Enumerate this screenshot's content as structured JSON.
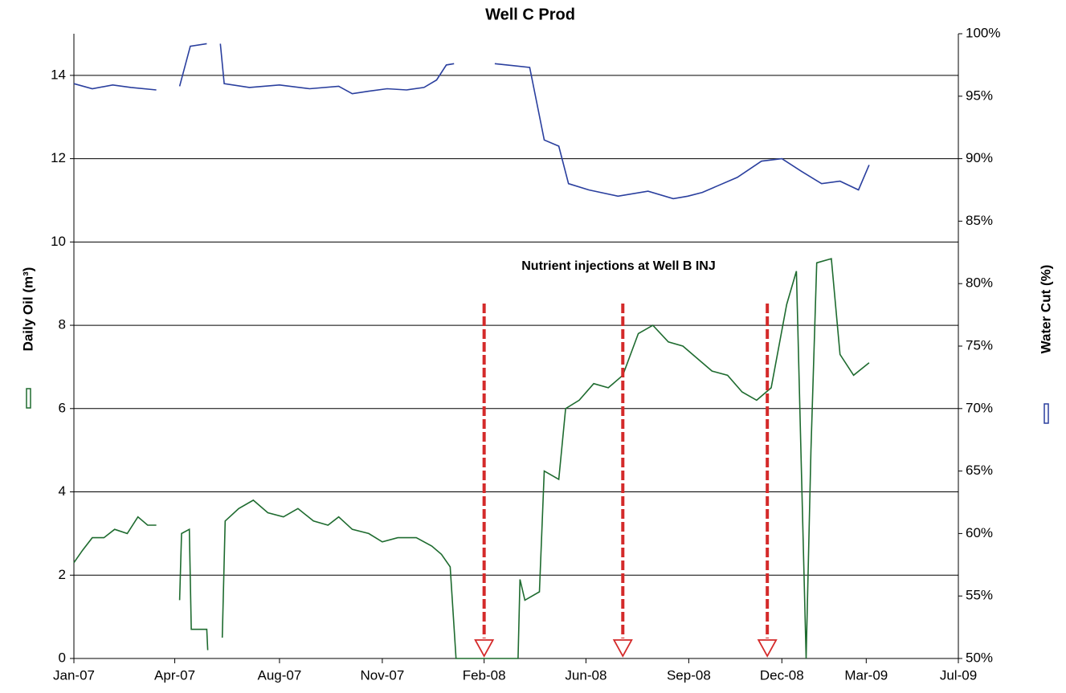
{
  "chart_data": {
    "type": "line",
    "title": "Well C Prod",
    "y_label": "Daily Oil (m³)",
    "y2_label": "Water Cut (%)",
    "annotation": "Nutrient injections at Well B INJ",
    "annotation_color": "#d42a2a",
    "injections": [
      "2008-02-28",
      "2008-07-20",
      "2008-12-16"
    ],
    "grid": true,
    "xlim": [
      "2007-01-01",
      "2009-07-01"
    ],
    "xticks": [
      {
        "value": "2007-01-01",
        "label": "Jan-07"
      },
      {
        "value": "2007-04-15",
        "label": "Apr-07"
      },
      {
        "value": "2007-08-01",
        "label": "Aug-07"
      },
      {
        "value": "2007-11-15",
        "label": "Nov-07"
      },
      {
        "value": "2008-02-28",
        "label": "Feb-08"
      },
      {
        "value": "2008-06-12",
        "label": "Jun-08"
      },
      {
        "value": "2008-09-26",
        "label": "Sep-08"
      },
      {
        "value": "2008-12-31",
        "label": "Dec-08"
      },
      {
        "value": "2009-03-28",
        "label": "Mar-09"
      },
      {
        "value": "2009-07-01",
        "label": "Jul-09"
      }
    ],
    "ylim": [
      0,
      15
    ],
    "yticks": [
      0,
      2,
      4,
      6,
      8,
      10,
      12,
      14
    ],
    "y2lim": [
      50,
      100
    ],
    "y2ticks": [
      {
        "value": 50,
        "label": "50%"
      },
      {
        "value": 55,
        "label": "55%"
      },
      {
        "value": 60,
        "label": "60%"
      },
      {
        "value": 65,
        "label": "65%"
      },
      {
        "value": 70,
        "label": "70%"
      },
      {
        "value": 75,
        "label": "75%"
      },
      {
        "value": 80,
        "label": "80%"
      },
      {
        "value": 85,
        "label": "85%"
      },
      {
        "value": 90,
        "label": "90%"
      },
      {
        "value": 95,
        "label": "95%"
      },
      {
        "value": 100,
        "label": "100%"
      }
    ],
    "series": [
      {
        "color": "#1e6b2f",
        "axis": "y",
        "x": [
          "2007-01-01",
          "2007-01-10",
          "2007-01-20",
          "2007-02-01",
          "2007-02-12",
          "2007-02-25",
          "2007-03-08",
          "2007-03-18",
          "2007-03-27",
          "2007-04-10",
          "2007-04-20",
          "2007-04-22",
          "2007-04-30",
          "2007-05-02",
          "2007-05-18",
          "2007-05-19",
          "2007-05-26",
          "2007-06-03",
          "2007-06-06",
          "2007-06-20",
          "2007-07-05",
          "2007-07-20",
          "2007-08-05",
          "2007-08-20",
          "2007-09-05",
          "2007-09-20",
          "2007-10-01",
          "2007-10-15",
          "2007-11-01",
          "2007-11-15",
          "2007-12-01",
          "2007-12-20",
          "2008-01-05",
          "2008-01-15",
          "2008-01-24",
          "2008-01-30",
          "2008-04-03",
          "2008-04-05",
          "2008-04-10",
          "2008-04-25",
          "2008-04-30",
          "2008-05-15",
          "2008-05-22",
          "2008-06-05",
          "2008-06-20",
          "2008-07-05",
          "2008-07-20",
          "2008-08-05",
          "2008-08-20",
          "2008-09-05",
          "2008-09-20",
          "2008-10-05",
          "2008-10-20",
          "2008-11-05",
          "2008-11-20",
          "2008-12-05",
          "2008-12-20",
          "2009-01-05",
          "2009-01-15",
          "2009-01-25",
          "2009-01-30",
          "2009-02-05",
          "2009-02-20",
          "2009-03-01",
          "2009-03-15",
          "2009-03-31"
        ],
        "values": [
          2.3,
          2.6,
          2.9,
          2.9,
          3.1,
          3.0,
          3.4,
          3.2,
          3.2,
          null,
          1.4,
          3.0,
          3.1,
          0.7,
          0.7,
          0.2,
          null,
          0.5,
          3.3,
          3.6,
          3.8,
          3.5,
          3.4,
          3.6,
          3.3,
          3.2,
          3.4,
          3.1,
          3.0,
          2.8,
          2.9,
          2.9,
          2.7,
          2.5,
          2.2,
          0,
          0,
          1.9,
          1.4,
          1.6,
          4.5,
          4.3,
          6.0,
          6.2,
          6.6,
          6.5,
          6.8,
          7.8,
          8.0,
          7.6,
          7.5,
          7.2,
          6.9,
          6.8,
          6.4,
          6.2,
          6.5,
          8.5,
          9.3,
          0,
          5.0,
          9.5,
          9.6,
          7.3,
          6.8,
          7.1
        ]
      },
      {
        "color": "#2a3f9e",
        "axis": "y2",
        "x": [
          "2007-01-01",
          "2007-01-20",
          "2007-02-10",
          "2007-03-01",
          "2007-03-27",
          "2007-04-10",
          "2007-04-20",
          "2007-05-01",
          "2007-05-18",
          "2007-05-26",
          "2007-06-01",
          "2007-06-05",
          "2007-07-01",
          "2007-08-01",
          "2007-09-01",
          "2007-10-01",
          "2007-10-15",
          "2007-11-01",
          "2007-11-20",
          "2007-12-10",
          "2007-12-28",
          "2008-01-10",
          "2008-01-20",
          "2008-01-28",
          "2008-02-05",
          "2008-03-10",
          "2008-04-15",
          "2008-04-30",
          "2008-05-15",
          "2008-05-25",
          "2008-06-15",
          "2008-07-15",
          "2008-08-15",
          "2008-09-10",
          "2008-09-25",
          "2008-10-10",
          "2008-10-25",
          "2008-11-15",
          "2008-12-10",
          "2008-12-31",
          "2009-01-20",
          "2009-02-10",
          "2009-03-01",
          "2009-03-20",
          "2009-03-31"
        ],
        "values": [
          96.0,
          95.6,
          95.9,
          95.7,
          95.5,
          null,
          95.8,
          99.0,
          99.2,
          null,
          99.2,
          96.0,
          95.7,
          95.9,
          95.6,
          95.8,
          95.2,
          95.4,
          95.6,
          95.5,
          95.7,
          96.3,
          97.5,
          97.6,
          null,
          97.6,
          97.3,
          91.5,
          91.0,
          88.0,
          87.5,
          87.0,
          87.4,
          86.8,
          87.0,
          87.3,
          87.8,
          88.5,
          89.8,
          90.0,
          89.0,
          88.0,
          88.2,
          87.5,
          89.5
        ]
      }
    ]
  }
}
